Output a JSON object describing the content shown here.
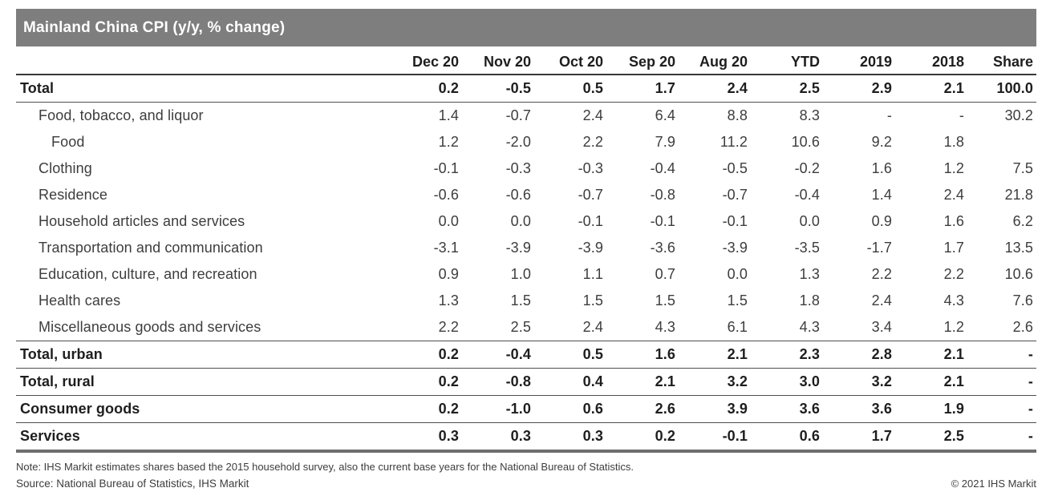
{
  "colors": {
    "header_bar_bg": "#7e7e7e",
    "header_bar_text": "#ffffff",
    "rule_dark": "#383838",
    "rule_thin": "#4f4f4f",
    "rule_bottom": "#6e6e6e",
    "text_dark": "#1e1e1e",
    "text_body": "#3d3d3d"
  },
  "chart_data": {
    "type": "table",
    "title": "Mainland China CPI (y/y, % change)",
    "columns": [
      "Dec 20",
      "Nov 20",
      "Oct 20",
      "Sep 20",
      "Aug 20",
      "YTD",
      "2019",
      "2018",
      "Share"
    ],
    "rows": [
      {
        "label": "Total",
        "indent": 0,
        "bold": true,
        "rule_below": true,
        "values": [
          "0.2",
          "-0.5",
          "0.5",
          "1.7",
          "2.4",
          "2.5",
          "2.9",
          "2.1",
          "100.0"
        ]
      },
      {
        "label": "Food, tobacco, and liquor",
        "indent": 1,
        "bold": false,
        "rule_below": false,
        "values": [
          "1.4",
          "-0.7",
          "2.4",
          "6.4",
          "8.8",
          "8.3",
          "-",
          "-",
          "30.2"
        ]
      },
      {
        "label": "Food",
        "indent": 2,
        "bold": false,
        "rule_below": false,
        "values": [
          "1.2",
          "-2.0",
          "2.2",
          "7.9",
          "11.2",
          "10.6",
          "9.2",
          "1.8",
          ""
        ]
      },
      {
        "label": "Clothing",
        "indent": 1,
        "bold": false,
        "rule_below": false,
        "values": [
          "-0.1",
          "-0.3",
          "-0.3",
          "-0.4",
          "-0.5",
          "-0.2",
          "1.6",
          "1.2",
          "7.5"
        ]
      },
      {
        "label": "Residence",
        "indent": 1,
        "bold": false,
        "rule_below": false,
        "values": [
          "-0.6",
          "-0.6",
          "-0.7",
          "-0.8",
          "-0.7",
          "-0.4",
          "1.4",
          "2.4",
          "21.8"
        ]
      },
      {
        "label": "Household articles and services",
        "indent": 1,
        "bold": false,
        "rule_below": false,
        "values": [
          "0.0",
          "0.0",
          "-0.1",
          "-0.1",
          "-0.1",
          "0.0",
          "0.9",
          "1.6",
          "6.2"
        ]
      },
      {
        "label": "Transportation and communication",
        "indent": 1,
        "bold": false,
        "rule_below": false,
        "values": [
          "-3.1",
          "-3.9",
          "-3.9",
          "-3.6",
          "-3.9",
          "-3.5",
          "-1.7",
          "1.7",
          "13.5"
        ]
      },
      {
        "label": "Education, culture, and recreation",
        "indent": 1,
        "bold": false,
        "rule_below": false,
        "values": [
          "0.9",
          "1.0",
          "1.1",
          "0.7",
          "0.0",
          "1.3",
          "2.2",
          "2.2",
          "10.6"
        ]
      },
      {
        "label": "Health cares",
        "indent": 1,
        "bold": false,
        "rule_below": false,
        "values": [
          "1.3",
          "1.5",
          "1.5",
          "1.5",
          "1.5",
          "1.8",
          "2.4",
          "4.3",
          "7.6"
        ]
      },
      {
        "label": "Miscellaneous goods and services",
        "indent": 1,
        "bold": false,
        "rule_below": true,
        "values": [
          "2.2",
          "2.5",
          "2.4",
          "4.3",
          "6.1",
          "4.3",
          "3.4",
          "1.2",
          "2.6"
        ]
      },
      {
        "label": "Total, urban",
        "indent": 0,
        "bold": true,
        "rule_below": true,
        "values": [
          "0.2",
          "-0.4",
          "0.5",
          "1.6",
          "2.1",
          "2.3",
          "2.8",
          "2.1",
          "-"
        ]
      },
      {
        "label": "Total, rural",
        "indent": 0,
        "bold": true,
        "rule_below": true,
        "values": [
          "0.2",
          "-0.8",
          "0.4",
          "2.1",
          "3.2",
          "3.0",
          "3.2",
          "2.1",
          "-"
        ]
      },
      {
        "label": "Consumer goods",
        "indent": 0,
        "bold": true,
        "rule_below": true,
        "values": [
          "0.2",
          "-1.0",
          "0.6",
          "2.6",
          "3.9",
          "3.6",
          "3.6",
          "1.9",
          "-"
        ]
      },
      {
        "label": "Services",
        "indent": 0,
        "bold": true,
        "rule_below": false,
        "values": [
          "0.3",
          "0.3",
          "0.3",
          "0.2",
          "-0.1",
          "0.6",
          "1.7",
          "2.5",
          "-"
        ]
      }
    ]
  },
  "footer": {
    "note": "Note: IHS Markit estimates shares based the 2015 household survey, also the current base years for the National Bureau of Statistics.",
    "source": "Source: National Bureau of Statistics, IHS Markit",
    "copyright": "© 2021 IHS Markit"
  }
}
